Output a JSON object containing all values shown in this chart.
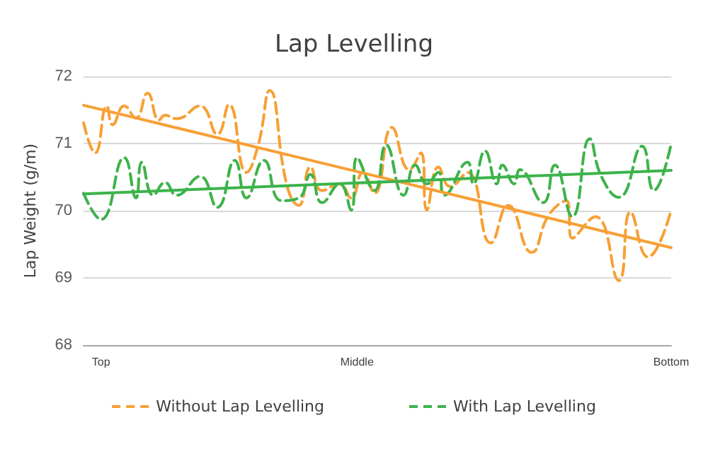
{
  "chart_data": {
    "type": "line",
    "title": "Lap Levelling",
    "ylabel": "Lap Weight (g/m)",
    "ylim": [
      68,
      72
    ],
    "yticks": [
      68,
      69,
      70,
      71,
      72
    ],
    "grid": "y",
    "legend": "bottom",
    "marker": "none",
    "categories": [
      null,
      null,
      null,
      "Top",
      null,
      null,
      null,
      null,
      null,
      null,
      null,
      null,
      null,
      null,
      null,
      null,
      null,
      null,
      null,
      null,
      null,
      null,
      null,
      null,
      null,
      null,
      null,
      null,
      null,
      null,
      null,
      null,
      null,
      null,
      null,
      null,
      null,
      null,
      null,
      null,
      null,
      null,
      null,
      null,
      null,
      null,
      null,
      "Middle",
      null,
      null,
      null,
      null,
      null,
      null,
      null,
      null,
      null,
      null,
      null,
      null,
      null,
      null,
      null,
      null,
      null,
      null,
      null,
      null,
      null,
      null,
      null,
      null,
      null,
      null,
      null,
      null,
      null,
      null,
      null,
      null,
      null,
      null,
      null,
      null,
      null,
      null,
      null,
      null,
      null,
      null,
      null,
      null,
      null,
      null,
      null,
      null,
      null,
      null,
      null,
      null,
      null,
      "Bottom"
    ],
    "series": [
      {
        "name": "Without Lap Levelling",
        "color": "#f7a035",
        "line_style": "dashed",
        "values": [
          71.31,
          null,
          70.86,
          null,
          71.56,
          71.28,
          null,
          71.56,
          null,
          71.38,
          null,
          71.75,
          null,
          71.35,
          71.42,
          null,
          71.37,
          null,
          null,
          null,
          71.56,
          null,
          null,
          71.14,
          null,
          71.58,
          null,
          null,
          70.57,
          null,
          70.97,
          null,
          71.79,
          null,
          null,
          70.36,
          null,
          70.08,
          null,
          70.65,
          null,
          70.3,
          null,
          null,
          70.4,
          null,
          70.19,
          null,
          70.57,
          null,
          70.26,
          null,
          null,
          71.24,
          null,
          null,
          70.61,
          null,
          70.86,
          70.01,
          null,
          70.65,
          null,
          70.36,
          null,
          null,
          70.57,
          null,
          null,
          null,
          69.52,
          null,
          null,
          70.08,
          null,
          null,
          null,
          69.38,
          null,
          null,
          69.94,
          null,
          null,
          70.15,
          69.59,
          null,
          null,
          null,
          69.91,
          null,
          null,
          null,
          68.96,
          null,
          69.98,
          null,
          null,
          69.31,
          null,
          null,
          null,
          70.01
        ]
      },
      {
        "name": "With Lap Levelling",
        "color": "#3db34a",
        "line_style": "dashed",
        "values": [
          70.26,
          null,
          null,
          69.87,
          null,
          null,
          null,
          70.79,
          null,
          70.19,
          70.72,
          null,
          70.23,
          null,
          70.42,
          null,
          70.23,
          null,
          null,
          null,
          70.51,
          null,
          null,
          70.05,
          null,
          null,
          70.75,
          null,
          70.19,
          null,
          null,
          70.75,
          null,
          null,
          70.15,
          null,
          null,
          70.19,
          null,
          70.54,
          null,
          70.12,
          null,
          null,
          70.4,
          null,
          70.01,
          70.79,
          null,
          null,
          70.3,
          null,
          70.98,
          null,
          null,
          70.23,
          null,
          70.68,
          null,
          70.4,
          null,
          70.57,
          70.23,
          null,
          null,
          null,
          70.72,
          70.4,
          null,
          70.89,
          null,
          70.4,
          70.68,
          null,
          70.4,
          70.61,
          null,
          null,
          null,
          70.12,
          null,
          70.68,
          null,
          null,
          69.91,
          null,
          null,
          71.07,
          null,
          70.51,
          null,
          null,
          70.2,
          null,
          null,
          null,
          70.96,
          null,
          70.3,
          null,
          null,
          71.0
        ]
      },
      {
        "color": "#f7a035",
        "line_style": "solid",
        "values": [
          71.57,
          null,
          null,
          null,
          null,
          null,
          null,
          null,
          null,
          null,
          null,
          null,
          null,
          null,
          null,
          null,
          null,
          null,
          null,
          null,
          null,
          null,
          null,
          null,
          null,
          null,
          null,
          null,
          null,
          null,
          null,
          null,
          null,
          null,
          null,
          null,
          null,
          null,
          null,
          null,
          null,
          null,
          null,
          null,
          null,
          null,
          null,
          null,
          null,
          null,
          null,
          null,
          null,
          null,
          null,
          null,
          null,
          null,
          null,
          null,
          null,
          null,
          null,
          null,
          null,
          null,
          null,
          null,
          null,
          null,
          null,
          null,
          null,
          null,
          null,
          null,
          null,
          null,
          null,
          null,
          null,
          null,
          null,
          null,
          null,
          null,
          null,
          null,
          null,
          null,
          null,
          null,
          null,
          null,
          null,
          null,
          null,
          null,
          null,
          null,
          null,
          69.45
        ]
      },
      {
        "color": "#3db34a",
        "line_style": "solid",
        "values": [
          70.25,
          null,
          null,
          null,
          null,
          null,
          null,
          null,
          null,
          null,
          null,
          null,
          null,
          null,
          null,
          null,
          null,
          null,
          null,
          null,
          null,
          null,
          null,
          null,
          null,
          null,
          null,
          null,
          null,
          null,
          null,
          null,
          null,
          null,
          null,
          null,
          null,
          null,
          null,
          null,
          null,
          null,
          null,
          null,
          null,
          null,
          null,
          null,
          null,
          null,
          null,
          null,
          null,
          null,
          null,
          null,
          null,
          null,
          null,
          null,
          null,
          null,
          null,
          null,
          null,
          null,
          null,
          null,
          null,
          null,
          null,
          null,
          null,
          null,
          null,
          null,
          null,
          null,
          null,
          null,
          null,
          null,
          null,
          null,
          null,
          null,
          null,
          null,
          null,
          null,
          null,
          null,
          null,
          null,
          null,
          null,
          null,
          null,
          null,
          null,
          null,
          70.6
        ]
      }
    ]
  }
}
